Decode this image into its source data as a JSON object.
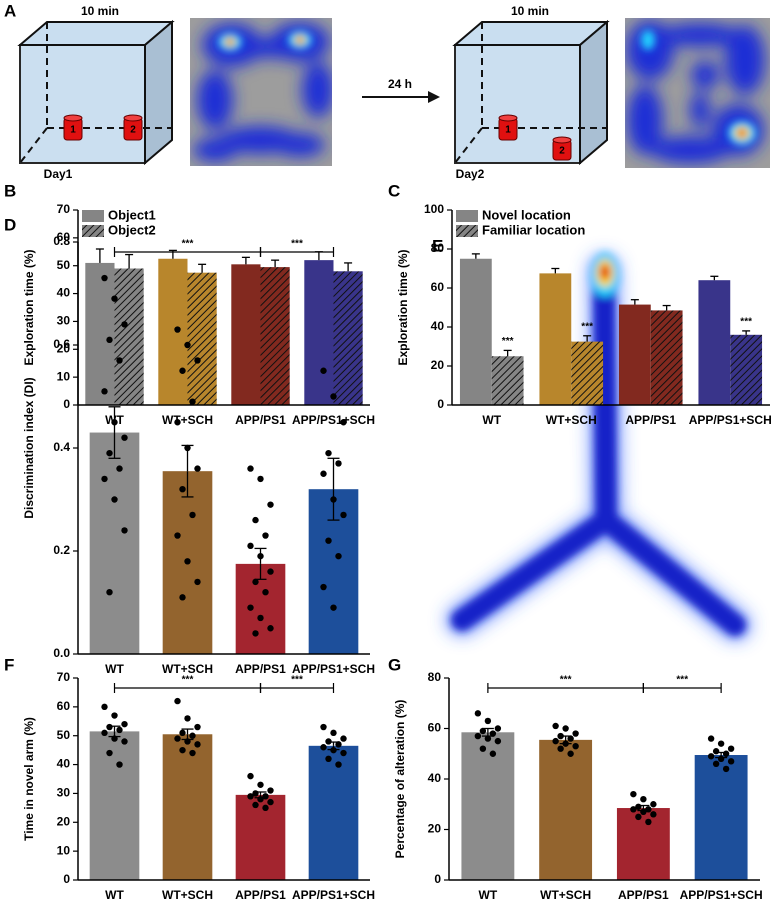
{
  "diagram": {
    "panel": "A",
    "day1": {
      "duration": "10 min",
      "label": "Day1",
      "objects": [
        "1",
        "2"
      ]
    },
    "arrow": "24 h",
    "day2": {
      "duration": "10 min",
      "label": "Day2",
      "objects": [
        "1",
        "2"
      ]
    }
  },
  "panel_e": "E",
  "chart_data": [
    {
      "panel": "B",
      "type": "grouped-bar",
      "ylabel": "Exploration time (%)",
      "categories": [
        "WT",
        "WT+SCH",
        "APP/PS1",
        "APP/PS1+SCH"
      ],
      "colors": [
        "#858585",
        "#b8862c",
        "#82291f",
        "#39348a"
      ],
      "series": [
        {
          "name": "Object1",
          "pattern": "solid",
          "values": [
            51,
            52.5,
            50.5,
            52
          ],
          "errors": [
            5,
            3,
            2.5,
            3
          ]
        },
        {
          "name": "Object2",
          "pattern": "hatched",
          "values": [
            49,
            47.5,
            49.5,
            48
          ],
          "errors": [
            5,
            3,
            2.5,
            3
          ]
        }
      ],
      "ylim": [
        0,
        70
      ],
      "yticks": [
        0,
        10,
        20,
        30,
        40,
        50,
        60,
        70
      ],
      "legend": "upper left"
    },
    {
      "panel": "C",
      "type": "grouped-bar",
      "ylabel": "Exploration time (%)",
      "categories": [
        "WT",
        "WT+SCH",
        "APP/PS1",
        "APP/PS1+SCH"
      ],
      "colors": [
        "#858585",
        "#b8862c",
        "#82291f",
        "#39348a"
      ],
      "series": [
        {
          "name": "Novel location",
          "pattern": "solid",
          "values": [
            75,
            67.5,
            51.5,
            64
          ],
          "errors": [
            2.5,
            2.5,
            2.5,
            2
          ]
        },
        {
          "name": "Familiar location",
          "pattern": "hatched",
          "values": [
            25,
            32.5,
            48.5,
            36
          ],
          "errors": [
            3,
            3,
            2.5,
            2
          ],
          "annotations": [
            "***",
            "***",
            null,
            "***"
          ]
        }
      ],
      "ylim": [
        0,
        100
      ],
      "yticks": [
        0,
        20,
        40,
        60,
        80,
        100
      ],
      "legend": "upper left"
    },
    {
      "panel": "D",
      "type": "bar-dots",
      "ylabel": "Discrimination index (DI)",
      "categories": [
        "WT",
        "WT+SCH",
        "APP/PS1",
        "APP/PS1+SCH"
      ],
      "colors": [
        "#8c8c8c",
        "#93642e",
        "#a3252f",
        "#1d4f9b"
      ],
      "values": [
        0.43,
        0.355,
        0.175,
        0.32
      ],
      "errors": [
        0.05,
        0.05,
        0.03,
        0.06
      ],
      "points": [
        [
          0.73,
          0.69,
          0.64,
          0.61,
          0.57,
          0.51,
          0.45,
          0.42,
          0.39,
          0.36,
          0.34,
          0.3,
          0.24,
          0.12
        ],
        [
          0.63,
          0.6,
          0.57,
          0.55,
          0.49,
          0.45,
          0.4,
          0.36,
          0.32,
          0.27,
          0.23,
          0.18,
          0.14,
          0.11
        ],
        [
          0.36,
          0.34,
          0.29,
          0.26,
          0.23,
          0.21,
          0.19,
          0.16,
          0.14,
          0.12,
          0.09,
          0.07,
          0.05,
          0.04
        ],
        [
          0.55,
          0.5,
          0.45,
          0.39,
          0.37,
          0.35,
          0.3,
          0.27,
          0.22,
          0.19,
          0.13,
          0.09
        ]
      ],
      "brackets": [
        {
          "text": "***",
          "from": "WT",
          "to": "APP/PS1"
        },
        {
          "text": "***",
          "from": "APP/PS1",
          "to": "APP/PS1+SCH"
        }
      ],
      "ylim": [
        0,
        0.8
      ],
      "yticks": [
        {
          "value": 0,
          "label": "0.0"
        },
        0.2,
        0.4,
        0.6,
        0.8
      ]
    },
    {
      "panel": "F",
      "type": "bar-dots",
      "ylabel": "Time in  novel arm (%)",
      "categories": [
        "WT",
        "WT+SCH",
        "APP/PS1",
        "APP/PS1+SCH"
      ],
      "colors": [
        "#8c8c8c",
        "#93642e",
        "#a3252f",
        "#1d4f9b"
      ],
      "values": [
        51.5,
        50.5,
        29.5,
        46.5
      ],
      "errors": [
        1.8,
        1.8,
        1,
        1.3
      ],
      "points": [
        [
          60,
          57,
          54,
          53,
          52,
          51,
          49,
          48,
          44,
          40
        ],
        [
          62,
          56,
          53,
          51,
          50,
          49,
          48,
          47,
          45,
          44
        ],
        [
          36,
          33,
          31,
          30,
          29,
          29,
          28,
          27,
          26,
          25
        ],
        [
          53,
          51,
          49,
          48,
          47,
          46,
          45,
          44,
          42,
          40
        ]
      ],
      "brackets": [
        {
          "text": "***",
          "from": "WT",
          "to": "APP/PS1"
        },
        {
          "text": "***",
          "from": "APP/PS1",
          "to": "APP/PS1+SCH"
        }
      ],
      "ylim": [
        0,
        70
      ],
      "yticks": [
        0,
        10,
        20,
        30,
        40,
        50,
        60,
        70
      ]
    },
    {
      "panel": "G",
      "type": "bar-dots",
      "ylabel": "Percentage of alteration (%)",
      "categories": [
        "WT",
        "WT+SCH",
        "APP/PS1",
        "APP/PS1+SCH"
      ],
      "colors": [
        "#8c8c8c",
        "#93642e",
        "#a3252f",
        "#1d4f9b"
      ],
      "values": [
        58.5,
        55.5,
        28.5,
        49.5
      ],
      "errors": [
        1.5,
        1.5,
        1,
        1
      ],
      "points": [
        [
          66,
          63,
          60,
          59,
          58,
          57,
          56,
          55,
          52,
          50
        ],
        [
          61,
          60,
          58,
          57,
          56,
          55,
          54,
          53,
          52,
          50
        ],
        [
          34,
          32,
          30,
          29,
          28,
          28,
          27,
          26,
          25,
          23
        ],
        [
          56,
          54,
          52,
          51,
          50,
          49,
          48,
          47,
          46,
          44
        ]
      ],
      "brackets": [
        {
          "text": "***",
          "from": "WT",
          "to": "APP/PS1"
        },
        {
          "text": "***",
          "from": "APP/PS1",
          "to": "APP/PS1+SCH"
        }
      ],
      "ylim": [
        0,
        80
      ],
      "yticks": [
        0,
        20,
        40,
        60,
        80
      ]
    }
  ]
}
